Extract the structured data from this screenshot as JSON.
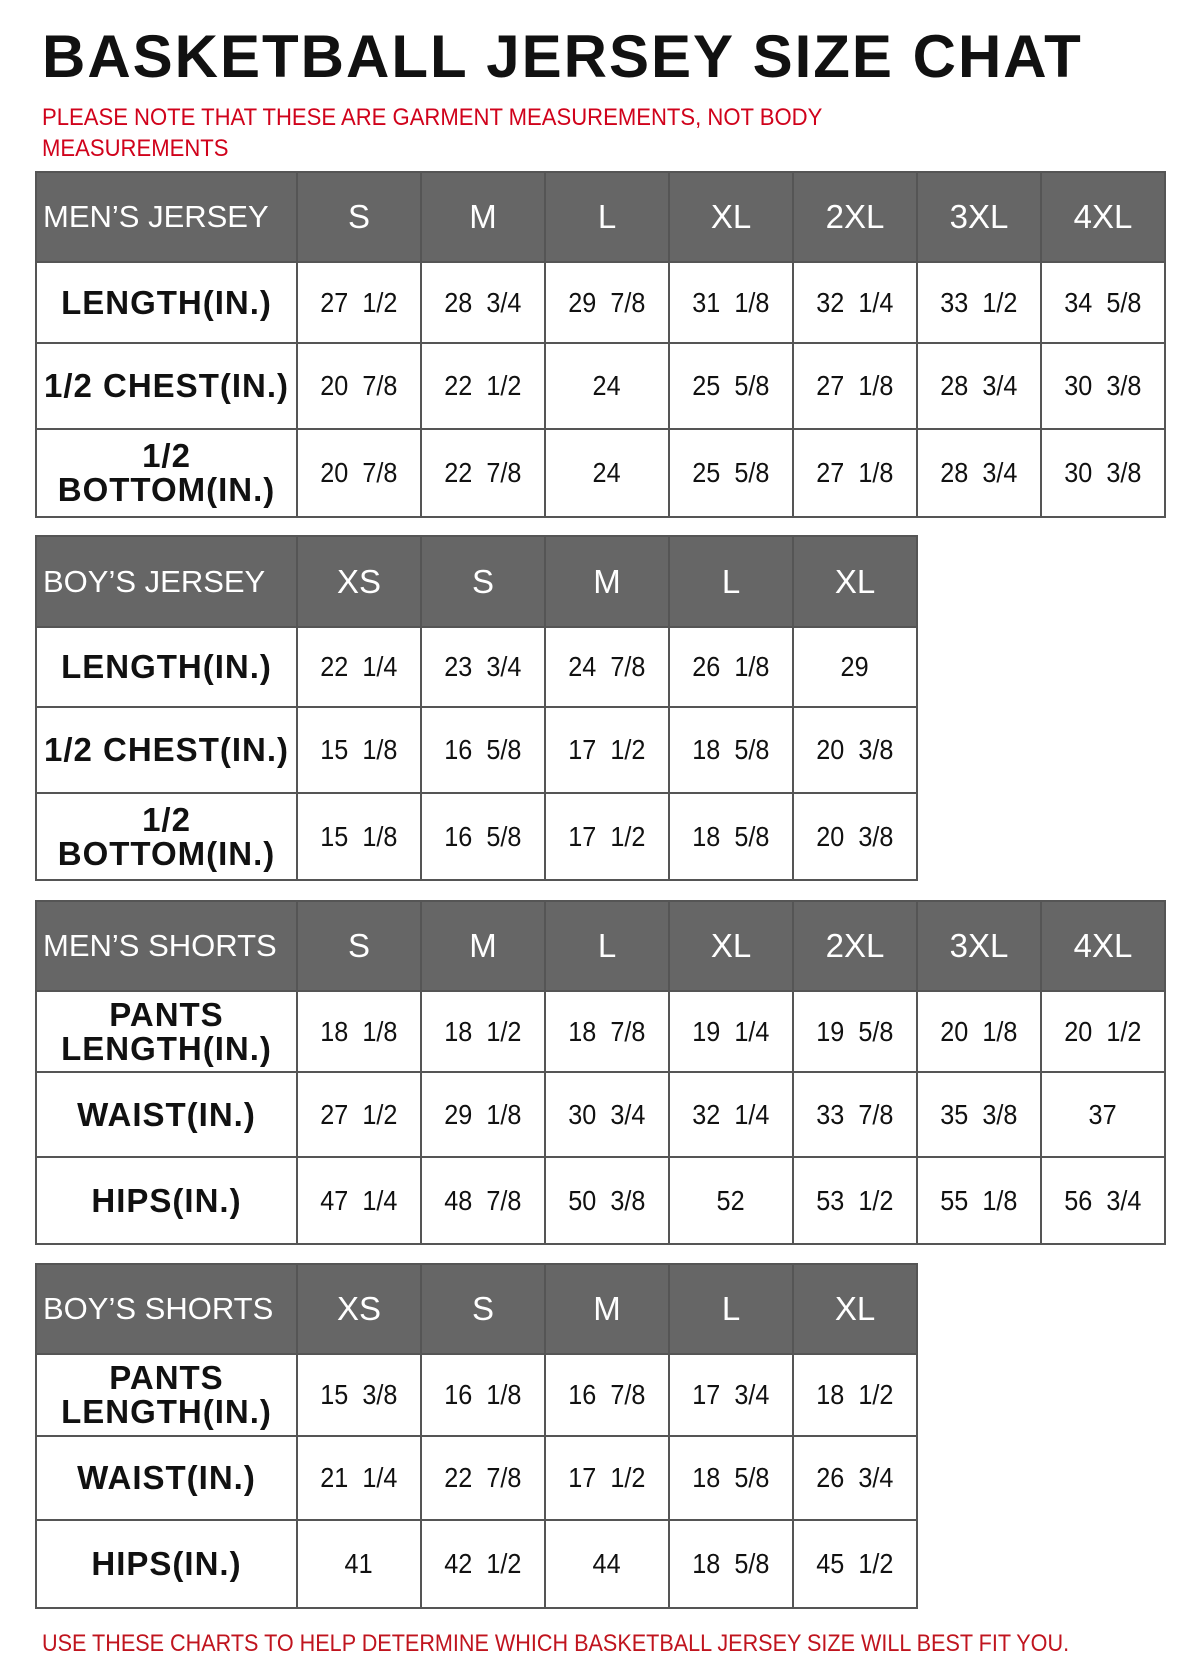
{
  "title": "BASKETBALL JERSEY SIZE CHAT",
  "note": "PLEASE NOTE THAT THESE ARE GARMENT MEASUREMENTS, NOT BODY MEASUREMENTS",
  "footer": "USE THESE CHARTS TO HELP DETERMINE WHICH BASKETBALL JERSEY SIZE WILL BEST FIT YOU.",
  "colors": {
    "header_bg": "#666666",
    "note_text": "#d0021b"
  },
  "tables": [
    {
      "title": "MEN’S JERSEY",
      "sizes": [
        "S",
        "M",
        "L",
        "XL",
        "2XL",
        "3XL",
        "4XL"
      ],
      "rows": [
        {
          "label": "LENGTH(IN.)",
          "values": [
            "27  1/2",
            "28  3/4",
            "29  7/8",
            "31  1/8",
            "32  1/4",
            "33  1/2",
            "34  5/8"
          ]
        },
        {
          "label": "1/2  CHEST(IN.)",
          "values": [
            "20  7/8",
            "22  1/2",
            "24",
            "25  5/8",
            "27  1/8",
            "28  3/4",
            "30  3/8"
          ]
        },
        {
          "label": "1/2  BOTTOM(IN.)",
          "values": [
            "20  7/8",
            "22  7/8",
            "24",
            "25  5/8",
            "27  1/8",
            "28  3/4",
            "30  3/8"
          ]
        }
      ]
    },
    {
      "title": "BOY’S JERSEY",
      "sizes": [
        "XS",
        "S",
        "M",
        "L",
        "XL"
      ],
      "rows": [
        {
          "label": "LENGTH(IN.)",
          "values": [
            "22  1/4",
            "23  3/4",
            "24  7/8",
            "26  1/8",
            "29"
          ]
        },
        {
          "label": "1/2  CHEST(IN.)",
          "values": [
            "15  1/8",
            "16  5/8",
            "17  1/2",
            "18  5/8",
            "20  3/8"
          ]
        },
        {
          "label": "1/2  BOTTOM(IN.)",
          "values": [
            "15  1/8",
            "16  5/8",
            "17  1/2",
            "18  5/8",
            "20  3/8"
          ]
        }
      ]
    },
    {
      "title": "MEN’S SHORTS",
      "sizes": [
        "S",
        "M",
        "L",
        "XL",
        "2XL",
        "3XL",
        "4XL"
      ],
      "rows": [
        {
          "label": "PANTS LENGTH(IN.)",
          "values": [
            "18  1/8",
            "18  1/2",
            "18  7/8",
            "19  1/4",
            "19  5/8",
            "20  1/8",
            "20  1/2"
          ]
        },
        {
          "label": "WAIST(IN.)",
          "values": [
            "27  1/2",
            "29  1/8",
            "30  3/4",
            "32  1/4",
            "33  7/8",
            "35  3/8",
            "37"
          ]
        },
        {
          "label": "HIPS(IN.)",
          "values": [
            "47  1/4",
            "48  7/8",
            "50  3/8",
            "52",
            "53  1/2",
            "55  1/8",
            "56  3/4"
          ]
        }
      ]
    },
    {
      "title": "BOY’S SHORTS",
      "sizes": [
        "XS",
        "S",
        "M",
        "L",
        "XL"
      ],
      "rows": [
        {
          "label": "PANTS LENGTH(IN.)",
          "values": [
            "15  3/8",
            "16  1/8",
            "16  7/8",
            "17  3/4",
            "18  1/2"
          ]
        },
        {
          "label": "WAIST(IN.)",
          "values": [
            "21  1/4",
            "22  7/8",
            "17  1/2",
            "18  5/8",
            "26  3/4"
          ]
        },
        {
          "label": "HIPS(IN.)",
          "values": [
            "41",
            "42  1/2",
            "44",
            "18  5/8",
            "45  1/2"
          ]
        }
      ]
    }
  ]
}
